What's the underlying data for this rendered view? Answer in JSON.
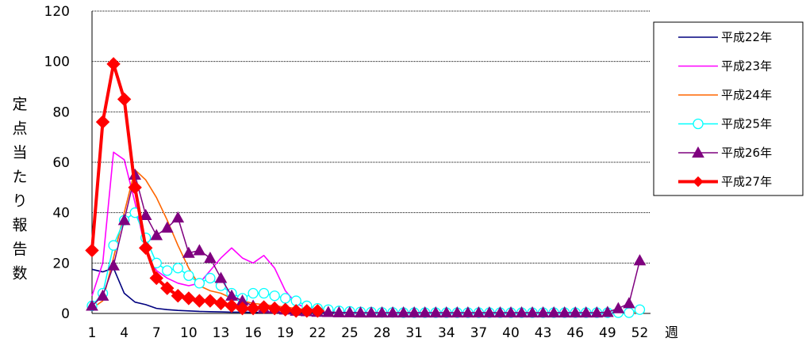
{
  "chart_data": {
    "type": "line",
    "ylabel": "定点当たり報告数",
    "xlabel": "週",
    "ylim": [
      0,
      120
    ],
    "yticks": [
      0,
      20,
      40,
      60,
      80,
      100,
      120
    ],
    "xlim": [
      1,
      53
    ],
    "xticks": [
      1,
      4,
      7,
      10,
      13,
      16,
      19,
      22,
      25,
      28,
      31,
      34,
      37,
      40,
      43,
      46,
      49,
      52
    ],
    "grid": true,
    "legend_position": "right",
    "series": [
      {
        "name": "平成22年",
        "color": "#00007f",
        "marker": "none",
        "values": [
          17.5,
          16.5,
          18,
          8,
          4.5,
          3.5,
          2,
          1.5,
          1.2,
          1,
          0.8,
          0.7,
          0.6,
          0.5,
          0.5,
          0.4,
          0.4,
          0.3,
          0.3,
          0.3,
          0.3,
          0.2,
          0.2,
          0.2,
          0.2,
          0.2,
          0.2,
          0.2,
          0.2,
          0.2,
          0.2,
          0.2,
          0.2,
          0.2,
          0.2,
          0.2,
          0.2,
          0.2,
          0.2,
          0.2,
          0.2,
          0.2,
          0.2,
          0.2,
          0.2,
          0.2,
          0.2,
          0.2,
          0.2,
          0.2,
          0.2,
          0.2
        ]
      },
      {
        "name": "平成23年",
        "color": "#ff00ff",
        "marker": "none",
        "values": [
          7,
          20,
          64,
          61,
          44,
          25,
          17,
          14,
          12,
          11,
          12,
          17,
          22,
          26,
          22,
          20,
          23,
          18,
          9,
          4,
          2,
          1.5,
          1,
          0.8,
          0.6,
          0.5,
          0.4,
          0.3,
          0.3,
          0.3,
          0.3,
          0.3,
          0.3,
          0.3,
          0.3,
          0.3,
          0.3,
          0.3,
          0.3,
          0.3,
          0.3,
          0.3,
          0.3,
          0.3,
          0.3,
          0.3,
          0.3,
          0.3,
          0.3,
          0.3,
          0.3,
          0.3
        ]
      },
      {
        "name": "平成24年",
        "color": "#ff6600",
        "marker": "none",
        "values": [
          2,
          5,
          22,
          40,
          57,
          53,
          46,
          37,
          27,
          18,
          11,
          9,
          8,
          6,
          5,
          4,
          3.5,
          3,
          2.5,
          2,
          1.5,
          1,
          0.8,
          0.6,
          0.5,
          0.4,
          0.3,
          0.3,
          0.3,
          0.3,
          0.3,
          0.3,
          0.3,
          0.3,
          0.3,
          0.3,
          0.3,
          0.3,
          0.3,
          0.3,
          0.3,
          0.3,
          0.3,
          0.3,
          0.3,
          0.3,
          0.3,
          0.3,
          0.3,
          0.3,
          0.3,
          0.3
        ]
      },
      {
        "name": "平成25年",
        "color": "#00ffff",
        "marker": "circle",
        "values": [
          3,
          8,
          27,
          37,
          40,
          30,
          20,
          17,
          18,
          15,
          12,
          14,
          11,
          8,
          6,
          8,
          8,
          7,
          6,
          5,
          3,
          2,
          1.5,
          1,
          0.8,
          0.6,
          0.5,
          0.4,
          0.4,
          0.3,
          0.3,
          0.3,
          0.3,
          0.3,
          0.3,
          0.3,
          0.3,
          0.3,
          0.3,
          0.3,
          0.3,
          0.3,
          0.3,
          0.3,
          0.3,
          0.3,
          0.3,
          0.3,
          0.3,
          0.3,
          0.3,
          1.5
        ]
      },
      {
        "name": "平成26年",
        "color": "#7f007f",
        "marker": "triangle",
        "values": [
          3,
          7,
          19,
          37,
          55,
          39,
          31,
          34,
          38,
          24,
          25,
          22,
          14,
          7,
          5,
          3,
          2,
          2,
          1.5,
          1,
          0.8,
          0.6,
          0.5,
          0.4,
          0.4,
          0.3,
          0.3,
          0.3,
          0.3,
          0.3,
          0.3,
          0.3,
          0.3,
          0.3,
          0.3,
          0.3,
          0.3,
          0.3,
          0.3,
          0.3,
          0.3,
          0.3,
          0.3,
          0.3,
          0.3,
          0.3,
          0.3,
          0.3,
          0.5,
          2,
          4,
          21
        ]
      },
      {
        "name": "平成27年",
        "color": "#ff0000",
        "marker": "diamond",
        "values": [
          25,
          76,
          99,
          85,
          50,
          26,
          14,
          10,
          7,
          6,
          5,
          5,
          4,
          3,
          2,
          2,
          2.5,
          2,
          1.5,
          1,
          1,
          1
        ]
      }
    ]
  }
}
